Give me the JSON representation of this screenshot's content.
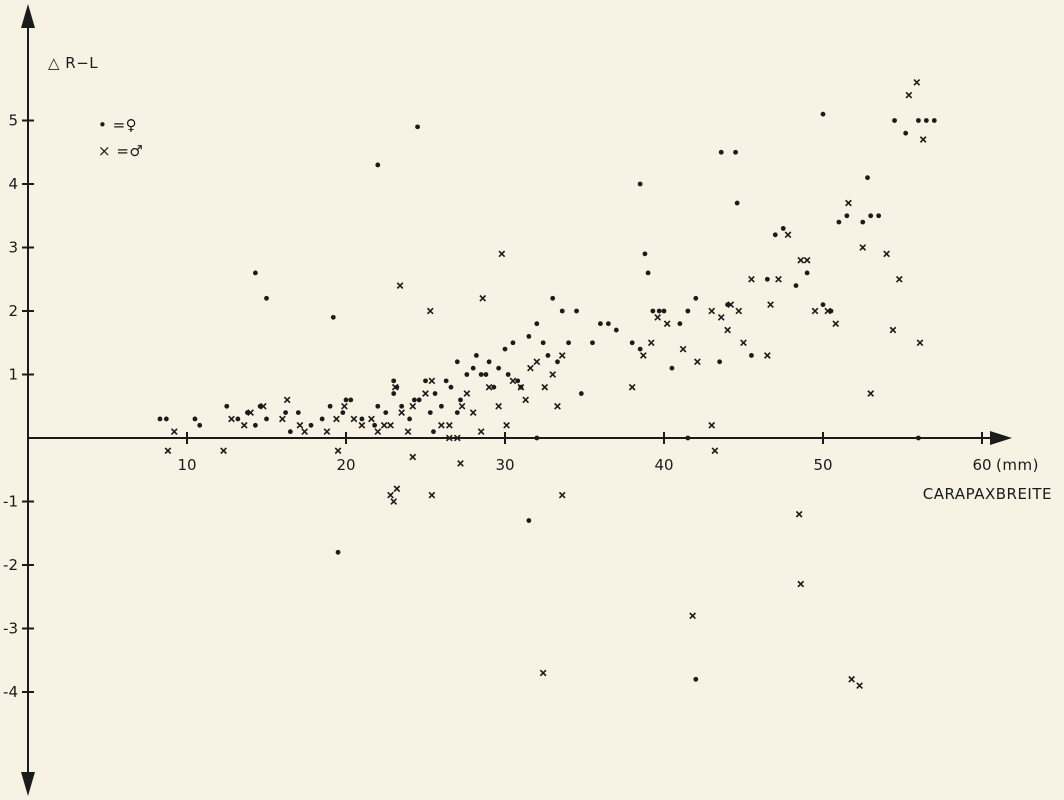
{
  "chart_data": {
    "type": "scatter",
    "ylabel": "△ R−L",
    "xlabel": "CARAPAXBREITE",
    "xunit": "(mm)",
    "xlim": [
      0,
      64
    ],
    "ylim": [
      -5,
      6.8
    ],
    "xticks": [
      10,
      20,
      30,
      40,
      50,
      60
    ],
    "xtick_labels": [
      "10",
      "20",
      "30",
      "40",
      "50",
      "60"
    ],
    "yticks": [
      5,
      4,
      3,
      2,
      1,
      -1,
      -2,
      -3,
      -4
    ],
    "ytick_labels": [
      "5",
      "4",
      "3",
      "2",
      "1",
      "-1",
      "-2",
      "-3",
      "-4"
    ],
    "grid": false,
    "legend_position": "top-left",
    "series": [
      {
        "name": "♀",
        "symbol": "dot",
        "legend_label": "• =♀",
        "x": [
          8.3,
          8.7,
          10.5,
          10.8,
          12.5,
          13.2,
          13.8,
          14.3,
          14.6,
          15.0,
          16.2,
          16.5,
          17.0,
          17.8,
          18.5,
          19.0,
          19.8,
          20.3,
          21.0,
          21.8,
          22.0,
          22.5,
          23.0,
          23.2,
          23.5,
          24.0,
          24.3,
          24.6,
          25.0,
          25.3,
          25.6,
          26.0,
          26.3,
          26.6,
          27.0,
          27.2,
          27.6,
          28.0,
          28.2,
          28.5,
          28.8,
          29.0,
          29.3,
          29.6,
          30.0,
          30.2,
          30.5,
          30.8,
          31.0,
          31.5,
          32.0,
          32.4,
          32.7,
          33.0,
          33.3,
          33.6,
          34.0,
          34.5,
          34.8,
          35.5,
          36.0,
          36.5,
          37.0,
          38.0,
          38.5,
          38.8,
          39.0,
          39.3,
          39.7,
          40.0,
          40.5,
          41.0,
          41.5,
          42.0,
          43.5,
          44.0,
          44.6,
          45.5,
          46.5,
          47.0,
          47.5,
          48.3,
          49.0,
          50.0,
          50.5,
          51.0,
          51.5,
          52.5,
          52.8,
          53.0,
          53.5,
          54.5,
          55.2,
          56.0,
          56.5,
          57.0,
          19.2,
          19.5,
          22.0,
          14.3,
          15.0,
          24.5,
          31.5,
          32.0,
          41.5,
          42.0,
          38.5,
          44.5,
          50.0,
          43.6,
          56.0,
          20.0,
          23.0,
          27.0,
          25.5
        ],
        "y": [
          0.3,
          0.3,
          0.3,
          0.2,
          0.5,
          0.3,
          0.4,
          0.2,
          0.5,
          0.3,
          0.4,
          0.1,
          0.4,
          0.2,
          0.3,
          0.5,
          0.4,
          0.6,
          0.3,
          0.2,
          0.5,
          0.4,
          0.7,
          0.8,
          0.5,
          0.3,
          0.6,
          0.6,
          0.9,
          0.4,
          0.7,
          0.5,
          0.9,
          0.8,
          1.2,
          0.6,
          1.0,
          1.1,
          1.3,
          1.0,
          1.0,
          1.2,
          0.8,
          1.1,
          1.4,
          1.0,
          1.5,
          0.9,
          0.8,
          1.6,
          1.8,
          1.5,
          1.3,
          2.2,
          1.2,
          2.0,
          1.5,
          2.0,
          0.7,
          1.5,
          1.8,
          1.8,
          1.7,
          1.5,
          1.4,
          2.9,
          2.6,
          2.0,
          2.0,
          2.0,
          1.1,
          1.8,
          2.0,
          2.2,
          1.2,
          2.1,
          3.7,
          1.3,
          2.5,
          3.2,
          3.3,
          2.4,
          2.6,
          2.1,
          2.0,
          3.4,
          3.5,
          3.4,
          4.1,
          3.5,
          3.5,
          5.0,
          4.8,
          5.0,
          5.0,
          5.0,
          1.9,
          -1.8,
          4.3,
          2.6,
          2.2,
          4.9,
          -1.3,
          0.0,
          0.0,
          -3.8,
          4.0,
          4.5,
          5.1,
          4.5,
          0.0,
          0.6,
          0.9,
          0.4,
          0.1
        ]
      },
      {
        "name": "♂",
        "symbol": "cross",
        "legend_label": "× =♂",
        "x": [
          8.8,
          9.2,
          12.3,
          12.8,
          13.6,
          14.0,
          14.8,
          16.0,
          16.3,
          17.1,
          17.4,
          18.8,
          19.4,
          19.9,
          20.5,
          21.0,
          21.6,
          22.0,
          22.4,
          22.8,
          23.1,
          23.5,
          23.9,
          24.2,
          25.0,
          25.4,
          26.0,
          26.5,
          27.0,
          27.3,
          27.6,
          28.0,
          28.5,
          29.0,
          29.6,
          30.1,
          30.5,
          31.0,
          31.3,
          31.6,
          32.0,
          32.5,
          33.0,
          33.3,
          33.6,
          38.0,
          38.7,
          39.2,
          39.6,
          40.2,
          41.2,
          42.1,
          43.0,
          43.6,
          44.0,
          44.2,
          44.7,
          45.0,
          45.5,
          46.5,
          47.2,
          47.8,
          48.6,
          49.0,
          49.5,
          50.3,
          50.8,
          51.6,
          52.5,
          53.0,
          54.0,
          54.4,
          54.8,
          55.4,
          55.9,
          56.3,
          22.8,
          23.2,
          23.0,
          25.4,
          27.2,
          26.5,
          33.6,
          32.4,
          41.8,
          43.2,
          48.5,
          48.6,
          51.8,
          52.3,
          56.1,
          23.4,
          24.2,
          25.3,
          28.6,
          29.8,
          43.0,
          46.7,
          19.5
        ],
        "y": [
          -0.2,
          0.1,
          -0.2,
          0.3,
          0.2,
          0.4,
          0.5,
          0.3,
          0.6,
          0.2,
          0.1,
          0.1,
          0.3,
          0.5,
          0.3,
          0.2,
          0.3,
          0.1,
          0.2,
          0.2,
          0.8,
          0.4,
          0.1,
          0.5,
          0.7,
          0.9,
          0.2,
          0.2,
          0.0,
          0.5,
          0.7,
          0.4,
          0.1,
          0.8,
          0.5,
          0.2,
          0.9,
          0.8,
          0.6,
          1.1,
          1.2,
          0.8,
          1.0,
          0.5,
          1.3,
          0.8,
          1.3,
          1.5,
          1.9,
          1.8,
          1.4,
          1.2,
          2.0,
          1.9,
          1.7,
          2.1,
          2.0,
          1.5,
          2.5,
          1.3,
          2.5,
          3.2,
          2.8,
          2.8,
          2.0,
          2.0,
          1.8,
          3.7,
          3.0,
          0.7,
          2.9,
          1.7,
          2.5,
          5.4,
          5.6,
          4.7,
          -0.9,
          -0.8,
          -1.0,
          -0.9,
          -0.4,
          0.0,
          -0.9,
          -3.7,
          -2.8,
          -0.2,
          -1.2,
          -2.3,
          -3.8,
          -3.9,
          1.5,
          2.4,
          -0.3,
          2.0,
          2.2,
          2.9,
          0.2,
          2.1,
          -0.2
        ],
        "open_circles": []
      }
    ]
  }
}
